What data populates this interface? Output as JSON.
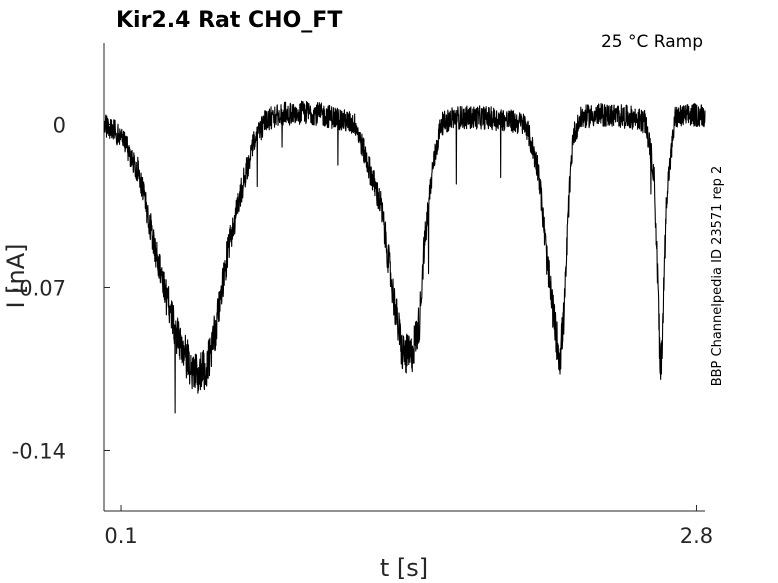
{
  "chart_data": {
    "type": "line",
    "title": "Kir2.4  Rat  CHO_FT",
    "annotation": "25 °C  Ramp",
    "side_label": "BBP Channelpedia ID 23571 rep 2",
    "xlabel": "t [s]",
    "ylabel": "I [nA]",
    "xlim": [
      0.02,
      2.84
    ],
    "ylim": [
      -0.166,
      0.035
    ],
    "x_ticks": [
      0.1,
      2.8
    ],
    "x_tick_labels": [
      "0.1",
      "2.8"
    ],
    "y_ticks": [
      0,
      -0.07,
      -0.14
    ],
    "y_tick_labels": [
      "0",
      "-0.07",
      "-0.14"
    ],
    "grid": false,
    "series": [
      {
        "x": [
          0.02,
          0.1,
          0.18,
          0.24,
          0.3,
          0.36,
          0.42,
          0.46,
          0.5,
          0.52,
          0.56,
          0.6,
          0.66,
          0.72,
          0.78,
          0.84,
          0.9,
          1.0,
          1.1,
          1.2,
          1.32,
          1.38,
          1.42,
          1.46,
          1.5,
          1.52,
          1.56,
          1.6,
          1.66,
          1.72,
          1.8,
          1.9,
          2.0,
          2.06,
          2.1,
          2.14,
          2.16,
          2.18,
          2.2,
          2.22,
          2.26,
          2.32,
          2.4,
          2.5,
          2.56,
          2.6,
          2.62,
          2.63,
          2.64,
          2.66,
          2.7,
          2.78,
          2.84
        ],
        "y": [
          0.0,
          -0.005,
          -0.02,
          -0.045,
          -0.07,
          -0.09,
          -0.103,
          -0.108,
          -0.104,
          -0.099,
          -0.08,
          -0.055,
          -0.03,
          -0.008,
          0.002,
          0.004,
          0.005,
          0.005,
          0.003,
          0.0,
          -0.035,
          -0.075,
          -0.098,
          -0.1,
          -0.085,
          -0.055,
          -0.02,
          0.0,
          0.003,
          0.003,
          0.003,
          0.002,
          0.0,
          -0.02,
          -0.06,
          -0.09,
          -0.1,
          -0.08,
          -0.035,
          -0.005,
          0.003,
          0.004,
          0.004,
          0.003,
          0.001,
          -0.02,
          -0.07,
          -0.11,
          -0.09,
          -0.03,
          0.003,
          0.004,
          0.004
        ],
        "noise": 0.007
      }
    ]
  }
}
